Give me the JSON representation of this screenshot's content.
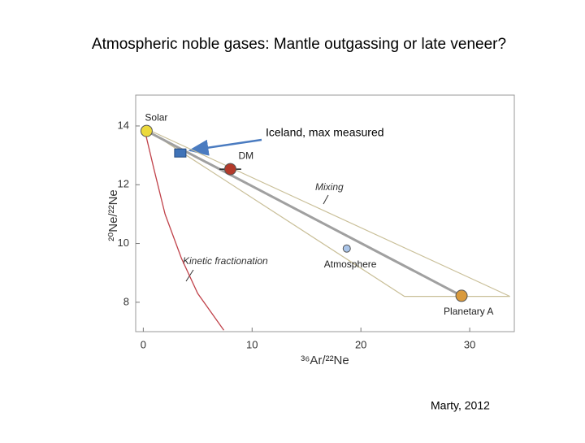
{
  "title": "Atmospheric noble gases: Mantle outgassing or late veneer?",
  "chart_data": {
    "type": "scatter",
    "xlabel": "³⁶Ar/²²Ne",
    "ylabel": "²⁰Ne/²²Ne",
    "xlim": [
      -0.7,
      34.1
    ],
    "ylim": [
      7,
      15.05
    ],
    "xticks": [
      0,
      10,
      20,
      30
    ],
    "yticks": [
      8,
      10,
      12,
      14
    ],
    "points": [
      {
        "label": "Solar",
        "x": 0.3,
        "y": 13.83,
        "color": "#ecd93c",
        "shape": "circle"
      },
      {
        "annotation": "Iceland, max measured",
        "x": 3.4,
        "y": 13.08,
        "color": "#3f73b8",
        "shape": "square"
      },
      {
        "label": "DM",
        "x": 8.0,
        "y": 12.53,
        "color": "#b33a2a",
        "shape": "circle",
        "xerr": 1,
        "yerr": 0.2
      },
      {
        "label": "Atmosphere",
        "x": 18.7,
        "y": 9.83,
        "color": "#a9c4e8",
        "shape": "circle"
      },
      {
        "label": "Planetary A",
        "x": 29.25,
        "y": 8.22,
        "color": "#d99a3c",
        "shape": "circle"
      }
    ],
    "mixing_line": {
      "label": "Mixing",
      "x": [
        0.3,
        29.25
      ],
      "y": [
        13.83,
        8.22
      ],
      "color": "#a0a0a0"
    },
    "envelope": {
      "x": [
        0,
        33.7,
        24,
        0
      ],
      "y": [
        13.95,
        8.2,
        8.2,
        13.95
      ],
      "color": "#c9bf98"
    },
    "kinetic_curve": {
      "label": "Kinetic fractionation",
      "x": [
        0.1,
        1,
        2,
        3.5,
        5,
        7.4
      ],
      "y": [
        13.9,
        12.5,
        11,
        9.5,
        8.3,
        7.05
      ],
      "color": "#c0424a"
    }
  },
  "citation": "Marty, 2012"
}
